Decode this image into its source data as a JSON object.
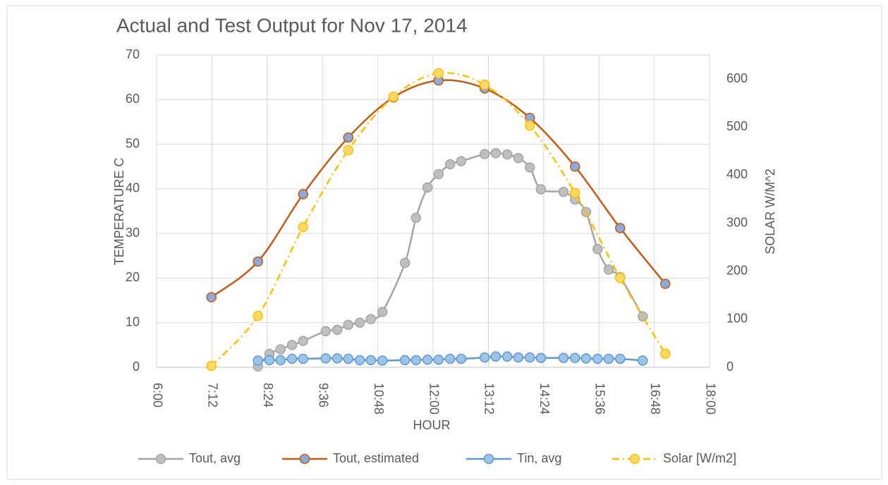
{
  "chart_data": {
    "type": "line",
    "title": "Actual and Test Output for Nov 17, 2014",
    "x_label": "HOUR",
    "y_label": "TEMPERATURE C",
    "y2_label": "SOLAR W/M^2",
    "xlim": [
      6,
      18
    ],
    "xticks": [
      {
        "value": 6,
        "label": "6:00"
      },
      {
        "value": 7.2,
        "label": "7:12"
      },
      {
        "value": 8.4,
        "label": "8:24"
      },
      {
        "value": 9.6,
        "label": "9:36"
      },
      {
        "value": 10.8,
        "label": "10:48"
      },
      {
        "value": 12,
        "label": "12:00"
      },
      {
        "value": 13.2,
        "label": "13:12"
      },
      {
        "value": 14.4,
        "label": "14:24"
      },
      {
        "value": 15.6,
        "label": "15:36"
      },
      {
        "value": 16.8,
        "label": "16:48"
      },
      {
        "value": 18,
        "label": "18:00"
      }
    ],
    "ylim": [
      0,
      70
    ],
    "yticks": [
      0,
      10,
      20,
      30,
      40,
      50,
      60,
      70
    ],
    "y2lim": [
      0,
      650
    ],
    "y2ticks": [
      0,
      100,
      200,
      300,
      400,
      500,
      600
    ],
    "grid": true,
    "legend": "bottom",
    "smooth": true,
    "series": [
      {
        "name": "Tout, avg",
        "color": "#a5a5a5",
        "marker_color": "#bfbfbf",
        "x": [
          8.2,
          8.45,
          8.69,
          8.94,
          9.18,
          9.67,
          9.92,
          10.16,
          10.41,
          10.65,
          10.9,
          11.39,
          11.63,
          11.88,
          12.12,
          12.37,
          12.61,
          13.12,
          13.36,
          13.61,
          13.85,
          14.1,
          14.34,
          14.83,
          15.08,
          15.32,
          15.57,
          15.81,
          16.06,
          16.55
        ],
        "values": [
          0.2,
          3,
          4,
          5,
          5.9,
          8.1,
          8.4,
          9.5,
          10,
          10.8,
          12.4,
          23.4,
          33.5,
          40.3,
          43.3,
          45.5,
          46.2,
          47.8,
          48,
          47.7,
          46.9,
          44.8,
          39.9,
          39.3,
          37.6,
          34.8,
          26.5,
          21.9,
          20.2,
          11.4
        ]
      },
      {
        "name": "Tout, estimated",
        "color": "#c55a11",
        "marker_color": "#8ea9db",
        "x": [
          7.19,
          8.2,
          9.18,
          10.16,
          11.14,
          12.12,
          13.12,
          14.1,
          15.08,
          16.06,
          17.04
        ],
        "values": [
          15.7,
          23.7,
          38.8,
          51.5,
          60.5,
          64.3,
          62.5,
          55.9,
          45,
          31.2,
          18.7
        ]
      },
      {
        "name": "Tin, avg",
        "color": "#5b9bd5",
        "marker_color": "#9dc3e6",
        "x": [
          8.2,
          8.45,
          8.69,
          8.94,
          9.18,
          9.67,
          9.92,
          10.16,
          10.41,
          10.65,
          10.9,
          11.39,
          11.63,
          11.88,
          12.12,
          12.37,
          12.61,
          13.12,
          13.36,
          13.61,
          13.85,
          14.1,
          14.34,
          14.83,
          15.08,
          15.32,
          15.57,
          15.81,
          16.06,
          16.55
        ],
        "values": [
          1.5,
          1.6,
          1.6,
          1.9,
          1.9,
          2,
          2,
          1.9,
          1.6,
          1.6,
          1.5,
          1.6,
          1.6,
          1.7,
          1.7,
          1.9,
          1.9,
          2.2,
          2.4,
          2.4,
          2.2,
          2.2,
          2.1,
          2.1,
          2.1,
          2,
          1.9,
          1.9,
          1.9,
          1.5
        ]
      },
      {
        "name": "Solar [W/m2]",
        "color": "#ffc000",
        "marker_color": "#ffd966",
        "axis": "y2",
        "line_style": "dashdot",
        "x": [
          7.19,
          8.2,
          9.18,
          10.16,
          11.14,
          12.12,
          13.12,
          14.1,
          15.08,
          16.06,
          17.04
        ],
        "values": [
          3,
          107,
          292,
          452,
          563,
          612,
          588,
          503,
          363,
          186,
          28
        ]
      }
    ]
  }
}
